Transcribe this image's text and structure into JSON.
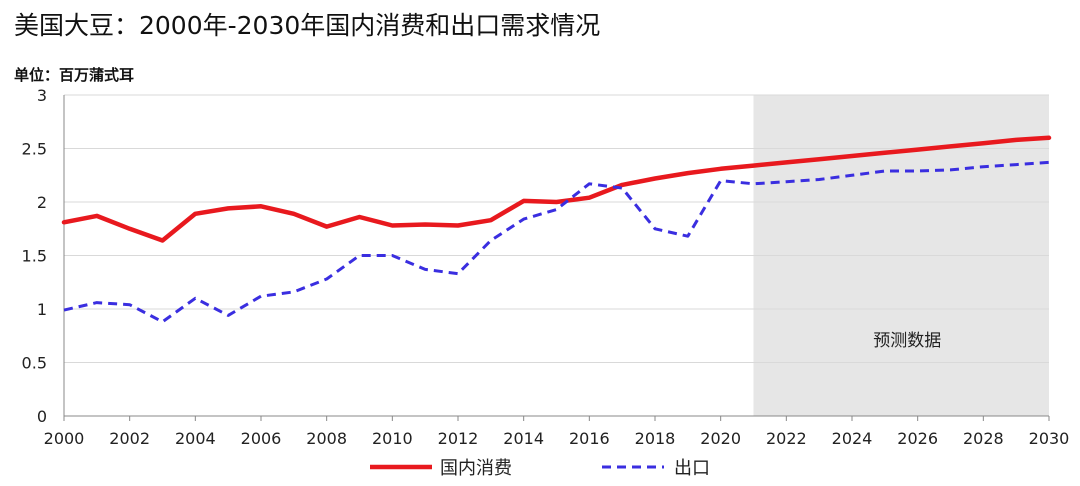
{
  "title": "美国大豆：2000年-2030年国内消费和出口需求情况",
  "unit_label": "单位：百万蒲式耳",
  "colors": {
    "domestic": "#e8191e",
    "export": "#3a2ee0",
    "forecast_bg": "#e6e6e6",
    "grid": "#d9d9d9",
    "axis": "#888888"
  },
  "chart_data": {
    "type": "line",
    "title": "美国大豆：2000年-2030年国内消费和出口需求情况",
    "xlabel": "",
    "ylabel": "单位：百万蒲式耳",
    "xlim": [
      2000,
      2030
    ],
    "ylim": [
      0,
      3
    ],
    "x_ticks": [
      "2000",
      "2002",
      "2004",
      "2006",
      "2008",
      "2010",
      "2012",
      "2014",
      "2016",
      "2018",
      "2020",
      "2022",
      "2024",
      "2026",
      "2028",
      "2030"
    ],
    "y_ticks": [
      "0",
      "0.5",
      "1",
      "1.5",
      "2",
      "2.5",
      "3"
    ],
    "grid": "horizontal",
    "legend_position": "bottom-center",
    "forecast_region": {
      "start": 2021,
      "end": 2030,
      "label": "预测数据"
    },
    "x": [
      2000,
      2001,
      2002,
      2003,
      2004,
      2005,
      2006,
      2007,
      2008,
      2009,
      2010,
      2011,
      2012,
      2013,
      2014,
      2015,
      2016,
      2017,
      2018,
      2019,
      2020,
      2021,
      2022,
      2023,
      2024,
      2025,
      2026,
      2027,
      2028,
      2029,
      2030
    ],
    "series": [
      {
        "name": "国内消费",
        "style": "solid",
        "values": [
          1.81,
          1.87,
          1.75,
          1.64,
          1.89,
          1.94,
          1.96,
          1.89,
          1.77,
          1.86,
          1.78,
          1.79,
          1.78,
          1.83,
          2.01,
          2.0,
          2.04,
          2.16,
          2.22,
          2.27,
          2.31,
          2.34,
          2.37,
          2.4,
          2.43,
          2.46,
          2.49,
          2.52,
          2.55,
          2.58,
          2.6
        ]
      },
      {
        "name": "出口",
        "style": "dashed",
        "values": [
          0.99,
          1.06,
          1.04,
          0.88,
          1.1,
          0.94,
          1.12,
          1.16,
          1.28,
          1.5,
          1.5,
          1.37,
          1.33,
          1.64,
          1.84,
          1.93,
          2.17,
          2.13,
          1.75,
          1.68,
          2.2,
          2.17,
          2.19,
          2.21,
          2.25,
          2.29,
          2.29,
          2.3,
          2.33,
          2.35,
          2.37
        ]
      }
    ]
  }
}
